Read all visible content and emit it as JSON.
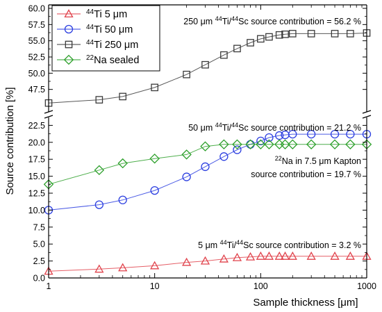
{
  "chart_data": {
    "type": "line",
    "x_scale": "log",
    "xlabel": "Sample thickness [μm]",
    "ylabel": "Source contribution [%]",
    "xlim": [
      1,
      1000
    ],
    "y_axis_break": {
      "lower_range": [
        0.0,
        25.0
      ],
      "upper_range": [
        45.0,
        60.0
      ]
    },
    "x_tick_labels": [
      "1",
      "10",
      "100",
      "1000"
    ],
    "y_tick_labels_lower": [
      "0.0",
      "2.5",
      "5.0",
      "7.5",
      "10.0",
      "12.5",
      "15.0",
      "17.5",
      "20.0",
      "22.5"
    ],
    "y_tick_labels_upper": [
      "47.5",
      "50.0",
      "52.5",
      "55.0",
      "57.5",
      "60.0"
    ],
    "legend_position": "top-left",
    "series": [
      {
        "name": "44Ti 5 μm",
        "isotope": "44",
        "element": "Ti 5 μm",
        "marker": "triangle",
        "color": "#e0424b",
        "x": [
          1,
          3,
          5,
          10,
          20,
          30,
          45,
          60,
          80,
          100,
          120,
          150,
          170,
          200,
          300,
          500,
          700,
          1000
        ],
        "y": [
          1.0,
          1.3,
          1.5,
          1.8,
          2.3,
          2.5,
          2.8,
          3.0,
          3.1,
          3.2,
          3.2,
          3.2,
          3.2,
          3.2,
          3.2,
          3.2,
          3.2,
          3.2
        ]
      },
      {
        "name": "44Ti 50 μm",
        "isotope": "44",
        "element": "Ti 50 μm",
        "marker": "circle",
        "color": "#2b3ee0",
        "x": [
          1,
          3,
          5,
          10,
          20,
          30,
          45,
          60,
          80,
          100,
          120,
          150,
          170,
          200,
          300,
          500,
          700,
          1000
        ],
        "y": [
          10.0,
          10.8,
          11.5,
          12.9,
          14.9,
          16.4,
          17.9,
          18.9,
          19.7,
          20.2,
          20.7,
          21.0,
          21.1,
          21.2,
          21.2,
          21.2,
          21.2,
          21.2
        ]
      },
      {
        "name": "44Ti 250 μm",
        "isotope": "44",
        "element": "Ti 250 μm",
        "marker": "square",
        "color": "#3a3a3a",
        "x": [
          1,
          3,
          5,
          10,
          20,
          30,
          45,
          60,
          80,
          100,
          120,
          150,
          170,
          200,
          300,
          500,
          700,
          1000
        ],
        "y": [
          45.4,
          45.9,
          46.4,
          47.8,
          49.8,
          51.3,
          52.8,
          53.8,
          54.7,
          55.3,
          55.6,
          55.9,
          56.0,
          56.1,
          56.1,
          56.1,
          56.1,
          56.2
        ]
      },
      {
        "name": "22Na sealed",
        "isotope": "22",
        "element": "Na sealed",
        "marker": "diamond",
        "color": "#2ea02c",
        "x": [
          1,
          3,
          5,
          10,
          20,
          30,
          45,
          60,
          80,
          100,
          120,
          150,
          170,
          200,
          300,
          500,
          700,
          1000
        ],
        "y": [
          13.8,
          15.9,
          16.9,
          17.6,
          18.2,
          19.4,
          19.7,
          19.7,
          19.7,
          19.7,
          19.7,
          19.7,
          19.7,
          19.7,
          19.7,
          19.7,
          19.7,
          19.7
        ]
      }
    ],
    "annotations": [
      {
        "id": "ann-250",
        "parts": [
          "250 μm ",
          "44",
          "Ti/",
          "44",
          "Sc source contribution = 56.2 %"
        ]
      },
      {
        "id": "ann-50",
        "parts": [
          "50 μm ",
          "44",
          "Ti/",
          "44",
          "Sc source contribution = 21.2 %"
        ]
      },
      {
        "id": "ann-na-1",
        "parts": [
          "22",
          "Na in 7.5 μm Kapton"
        ]
      },
      {
        "id": "ann-na-2",
        "parts": [
          "source contribution = 19.7 %"
        ]
      },
      {
        "id": "ann-5",
        "parts": [
          "5 μm ",
          "44",
          "Ti/",
          "44",
          "Sc source contribution = 3.2 %"
        ]
      }
    ]
  }
}
